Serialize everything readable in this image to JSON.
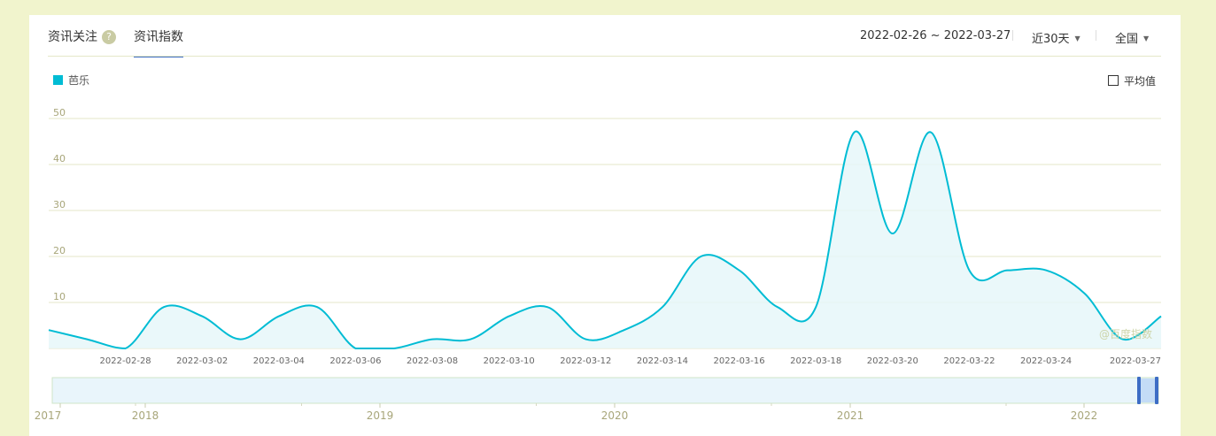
{
  "tabs": [
    {
      "label": "资讯关注",
      "help": "?"
    },
    {
      "label": "资讯指数"
    }
  ],
  "controls": {
    "date_range": "2022-02-26 ~ 2022-03-27",
    "period": "近30天",
    "region": "全国",
    "average_label": "平均值"
  },
  "watermark": "@百度指数",
  "colors": {
    "series": "#00bcd4",
    "area": "#e6f7f9",
    "grid": "#e4e7c8",
    "axis_text": "#a8a67a",
    "active_tab": "#3d6dc5",
    "overview_fill": "#e9f5fb",
    "handle": "#3d6dc5"
  },
  "chart_data": {
    "type": "area",
    "series": [
      {
        "name": "芭乐",
        "values": [
          4,
          2,
          0,
          9,
          7,
          2,
          7,
          9,
          0,
          0,
          2,
          2,
          7,
          9,
          2,
          4,
          9,
          20,
          17,
          9,
          9,
          47,
          25,
          47,
          17,
          17,
          17,
          12,
          2,
          7
        ]
      }
    ],
    "x": [
      "2022-02-26",
      "2022-02-27",
      "2022-02-28",
      "2022-03-01",
      "2022-03-02",
      "2022-03-03",
      "2022-03-04",
      "2022-03-05",
      "2022-03-06",
      "2022-03-07",
      "2022-03-08",
      "2022-03-09",
      "2022-03-10",
      "2022-03-11",
      "2022-03-12",
      "2022-03-13",
      "2022-03-14",
      "2022-03-15",
      "2022-03-16",
      "2022-03-17",
      "2022-03-18",
      "2022-03-19",
      "2022-03-20",
      "2022-03-21",
      "2022-03-22",
      "2022-03-23",
      "2022-03-24",
      "2022-03-25",
      "2022-03-26",
      "2022-03-27"
    ],
    "x_tick_labels": [
      "2022-02-28",
      "2022-03-02",
      "2022-03-04",
      "2022-03-06",
      "2022-03-08",
      "2022-03-10",
      "2022-03-12",
      "2022-03-14",
      "2022-03-16",
      "2022-03-18",
      "2022-03-20",
      "2022-03-22",
      "2022-03-24",
      "2022-03-27"
    ],
    "y_ticks": [
      10,
      20,
      30,
      40,
      50
    ],
    "ylim": [
      0,
      50
    ],
    "grid": true,
    "legend": "top-left",
    "overview_years": [
      "2017",
      "2018",
      "2019",
      "2020",
      "2021",
      "2022"
    ]
  }
}
